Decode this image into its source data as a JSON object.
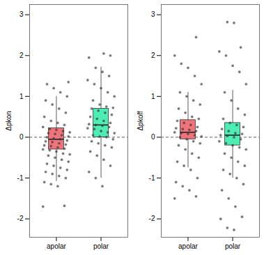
{
  "chart_data": [
    {
      "type": "box",
      "y_label": "Δpkon",
      "categories": [
        "apolar",
        "polar"
      ],
      "colors": [
        "#f0727a",
        "#4dedb4"
      ],
      "ylim": [
        -2.45,
        3.25
      ],
      "yticks": [
        -2,
        -1,
        0,
        1,
        2,
        3
      ],
      "hline": 0,
      "line_style": "dashed",
      "boxes": [
        {
          "whisker_low": -1.08,
          "q1": -0.3,
          "median": -0.05,
          "q3": 0.22,
          "whisker_high": 1.0
        },
        {
          "whisker_low": -1.0,
          "q1": 0.0,
          "median": 0.3,
          "q3": 0.7,
          "whisker_high": 1.72
        }
      ],
      "points": [
        [
          -1.7,
          -1.68,
          -1.2,
          -1.15,
          -1.1,
          -1.0,
          -0.95,
          -0.9,
          -0.85,
          -0.8,
          -0.75,
          -0.7,
          -0.65,
          -0.6,
          -0.55,
          -0.5,
          -0.45,
          -0.42,
          -0.4,
          -0.35,
          -0.32,
          -0.3,
          -0.28,
          -0.25,
          -0.22,
          -0.2,
          -0.18,
          -0.15,
          -0.12,
          -0.1,
          -0.08,
          -0.05,
          -0.03,
          0,
          0.02,
          0.05,
          0.08,
          0.1,
          0.12,
          0.15,
          0.18,
          0.2,
          0.25,
          0.3,
          0.35,
          0.4,
          0.5,
          0.6,
          0.7,
          0.8,
          0.9,
          1.0,
          1.1,
          1.2,
          1.3,
          1.35
        ],
        [
          -1.2,
          -1.0,
          -0.85,
          -0.7,
          -0.55,
          -0.45,
          -0.35,
          -0.25,
          -0.2,
          -0.15,
          -0.1,
          -0.05,
          0,
          0.02,
          0.05,
          0.1,
          0.12,
          0.15,
          0.2,
          0.22,
          0.25,
          0.28,
          0.3,
          0.32,
          0.35,
          0.4,
          0.45,
          0.5,
          0.55,
          0.6,
          0.65,
          0.7,
          0.72,
          0.75,
          0.8,
          0.9,
          1.0,
          1.1,
          1.2,
          1.3,
          1.4,
          1.5,
          1.6,
          1.7,
          1.95,
          2.0,
          2.05
        ]
      ]
    },
    {
      "type": "box",
      "y_label": "Δpkoff",
      "categories": [
        "apolar",
        "polar"
      ],
      "colors": [
        "#f0727a",
        "#4dedb4"
      ],
      "ylim": [
        -2.45,
        3.25
      ],
      "yticks": [
        -2,
        -1,
        0,
        1,
        2,
        3
      ],
      "hline": 0,
      "line_style": "dashed",
      "boxes": [
        {
          "whisker_low": -0.75,
          "q1": -0.05,
          "median": 0.12,
          "q3": 0.42,
          "whisker_high": 1.1
        },
        {
          "whisker_low": -1.0,
          "q1": -0.2,
          "median": 0.05,
          "q3": 0.35,
          "whisker_high": 1.15
        }
      ],
      "points": [
        [
          -1.5,
          -1.45,
          -1.3,
          -1.2,
          -1.1,
          -1.0,
          -0.8,
          -0.7,
          -0.6,
          -0.5,
          -0.4,
          -0.3,
          -0.2,
          -0.15,
          -0.1,
          -0.05,
          0,
          0.02,
          0.05,
          0.08,
          0.1,
          0.12,
          0.15,
          0.18,
          0.2,
          0.22,
          0.25,
          0.3,
          0.35,
          0.4,
          0.45,
          0.5,
          0.6,
          0.7,
          0.8,
          0.9,
          1.0,
          1.1,
          1.3,
          1.5,
          1.7,
          1.8,
          2.0,
          2.45
        ],
        [
          -2.27,
          -2.22,
          -2.0,
          -1.95,
          -1.7,
          -1.5,
          -1.3,
          -1.15,
          -1.0,
          -0.9,
          -0.8,
          -0.7,
          -0.6,
          -0.5,
          -0.4,
          -0.3,
          -0.25,
          -0.2,
          -0.15,
          -0.1,
          -0.05,
          0,
          0.03,
          0.05,
          0.08,
          0.1,
          0.15,
          0.2,
          0.25,
          0.3,
          0.35,
          0.45,
          0.55,
          0.7,
          0.9,
          1.1,
          1.3,
          1.6,
          1.75,
          2.0,
          2.1,
          2.2,
          2.8,
          2.82
        ]
      ]
    }
  ]
}
